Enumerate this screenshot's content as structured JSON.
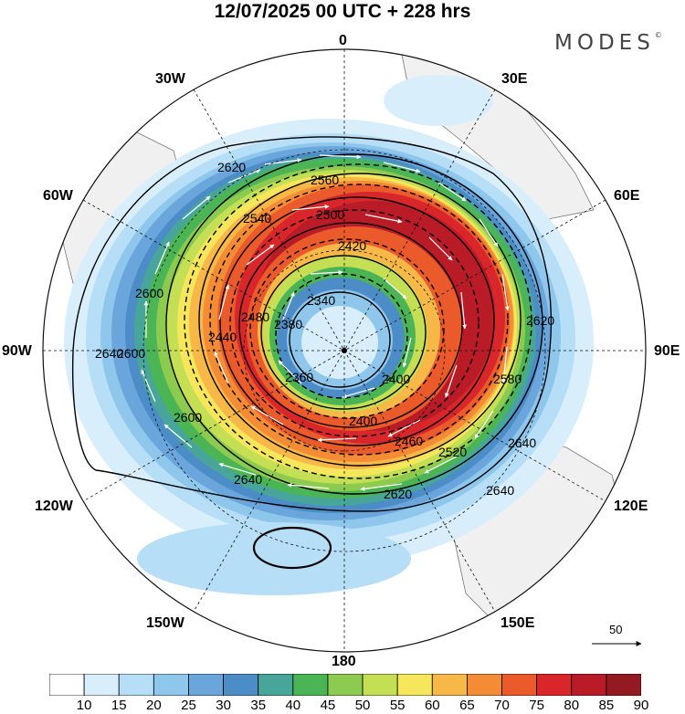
{
  "header": {
    "title": "12/07/2025  00 UTC  + 228 hrs",
    "brand": "MODES",
    "brand_mark": "©"
  },
  "longitudes": {
    "n0": "0",
    "w30": "30W",
    "e30": "30E",
    "w60": "60W",
    "e60": "60E",
    "w90": "90W",
    "e90": "90E",
    "w120": "120W",
    "e120": "120E",
    "w150": "150W",
    "e150": "150E",
    "s180": "180"
  },
  "contours": [
    "2340",
    "2360",
    "2380",
    "2400",
    "2420",
    "2440",
    "2460",
    "2480",
    "2500",
    "2520",
    "2540",
    "2560",
    "2580",
    "2600",
    "2620",
    "2640"
  ],
  "vector_reference": {
    "label": "50"
  },
  "colorbar": {
    "ticks": [
      "10",
      "15",
      "20",
      "25",
      "30",
      "35",
      "40",
      "45",
      "50",
      "55",
      "60",
      "65",
      "70",
      "75",
      "80",
      "85",
      "90"
    ],
    "colors": [
      "#ffffff",
      "#d8eefb",
      "#b6def6",
      "#8ec6ec",
      "#6aa6dc",
      "#4d8dc7",
      "#48a59a",
      "#4bb556",
      "#8ccb4f",
      "#c5df55",
      "#f6e65c",
      "#f7b847",
      "#f48b35",
      "#ea5a2a",
      "#d9262a",
      "#b91c26",
      "#921a20"
    ]
  },
  "colors": {
    "land": "#f0f0f0",
    "coast": "#777777",
    "grid": "#111111"
  }
}
